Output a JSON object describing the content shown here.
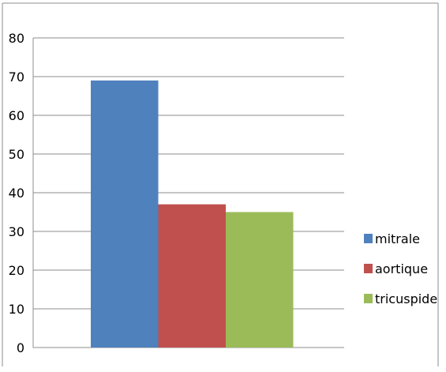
{
  "chart_data": {
    "type": "bar",
    "categories": [
      ""
    ],
    "series": [
      {
        "name": "mitrale",
        "values": [
          69
        ],
        "color": "#4F81BD"
      },
      {
        "name": "aortique",
        "values": [
          37
        ],
        "color": "#C0504D"
      },
      {
        "name": "tricuspide",
        "values": [
          35
        ],
        "color": "#9BBB59"
      }
    ],
    "ylim": [
      0,
      80
    ],
    "yticks": [
      0,
      10,
      20,
      30,
      40,
      50,
      60,
      70,
      80
    ],
    "grid": true,
    "legend": "right"
  }
}
